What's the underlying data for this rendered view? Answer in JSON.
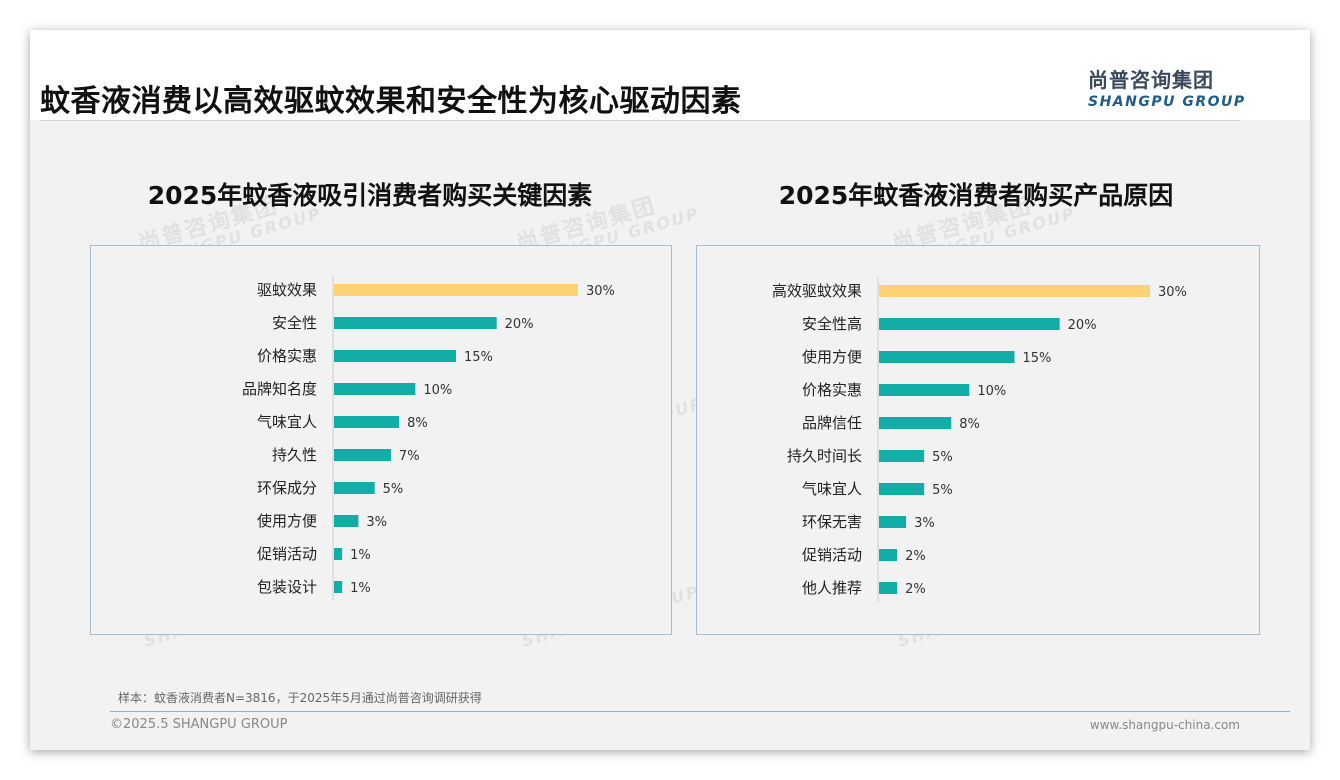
{
  "header": {
    "title": "蚊香液消费以高效驱蚊效果和安全性为核心驱动因素",
    "logo_cn": "尚普咨询集团",
    "logo_en": "SHANGPU GROUP"
  },
  "watermark": {
    "cn": "尚普咨询集团",
    "en": "SHANGPU GROUP"
  },
  "colors": {
    "highlight": "#FDD272",
    "bar": "#11ADA6",
    "border": "#A7BDD3"
  },
  "chart_data": [
    {
      "type": "bar",
      "orientation": "horizontal",
      "title": "2025年蚊香液吸引消费者购买关键因素",
      "categories": [
        "驱蚊效果",
        "安全性",
        "价格实惠",
        "品牌知名度",
        "气味宜人",
        "持久性",
        "环保成分",
        "使用方便",
        "促销活动",
        "包装设计"
      ],
      "values": [
        30,
        20,
        15,
        10,
        8,
        7,
        5,
        3,
        1,
        1
      ],
      "value_labels": [
        "30%",
        "20%",
        "15%",
        "10%",
        "8%",
        "7%",
        "5%",
        "3%",
        "1%",
        "1%"
      ],
      "unit": "%",
      "highlight_index": 0
    },
    {
      "type": "bar",
      "orientation": "horizontal",
      "title": "2025年蚊香液消费者购买产品原因",
      "categories": [
        "高效驱蚊效果",
        "安全性高",
        "使用方便",
        "价格实惠",
        "品牌信任",
        "持久时间长",
        "气味宜人",
        "环保无害",
        "促销活动",
        "他人推荐"
      ],
      "values": [
        30,
        20,
        15,
        10,
        8,
        5,
        5,
        3,
        2,
        2
      ],
      "value_labels": [
        "30%",
        "20%",
        "15%",
        "10%",
        "8%",
        "5%",
        "5%",
        "3%",
        "2%",
        "2%"
      ],
      "unit": "%",
      "highlight_index": 0
    }
  ],
  "footer": {
    "sample_note": "样本：蚊香液消费者N=3816，于2025年5月通过尚普咨询调研获得",
    "copyright": "©2025.5 SHANGPU GROUP",
    "website": "www.shangpu-china.com"
  }
}
